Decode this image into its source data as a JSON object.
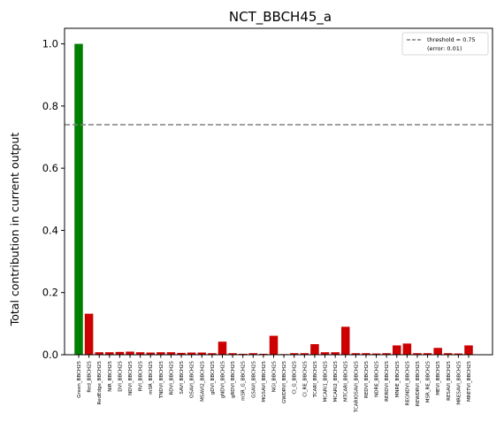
{
  "chart_data": {
    "type": "bar",
    "title": "NCT_BBCH45_a",
    "xlabel": "",
    "ylabel": "Total contribution in current output",
    "ylim": [
      0,
      1.05
    ],
    "yticks": [
      "0.0",
      "0.2",
      "0.4",
      "0.6",
      "0.8",
      "1.0"
    ],
    "ytick_values": [
      0,
      0.2,
      0.4,
      0.6,
      0.8,
      1.0
    ],
    "grid": false,
    "legend_position": "top-right",
    "threshold": {
      "value": 0.74,
      "label": "threshold = 0.75",
      "sublabel": "(error: 0.01)",
      "color": "#808080"
    },
    "colors": {
      "selected": "#008000",
      "other": "#cc0000"
    },
    "categories": [
      "Green_BBCH25",
      "Red_BBCH25",
      "RedEdge_BBCH25",
      "NIR_BBCH25",
      "DVI_BBCH25",
      "NDVI_BBCH25",
      "RVI_BBCH25",
      "mSR_BBCH25",
      "TNDVI_BBCH25",
      "RDVI_BBCH25",
      "SAVI_BBCH25",
      "OSAVI_BBCH25",
      "MSAVI2_BBCH25",
      "gDVI_BBCH25",
      "gNDVI_BBCH25",
      "gRDVI_BBCH25",
      "mSR_G_BBCH25",
      "GSAVI_BBCH25",
      "MGSAVI_BBCH25",
      "NGI_BBCH25",
      "GWDRVI_BBCH25",
      "CI_G_BBCH25",
      "CI_RE_BBCH25",
      "TCARI_BBCH25",
      "MCARI1_BBCH25",
      "MCARI2_BBCH25",
      "MTCARI_BBCH25",
      "TCARIOSAVI_BBCH25",
      "REDVI_BBCH25",
      "NDRE_BBCH25",
      "RERDVI_BBCH25",
      "MNRE_BBCH25",
      "REGNDVI_BBCH25",
      "REWDRVI_BBCH25",
      "MSR_RE_BBCH25",
      "MEVI_BBCH25",
      "RESAVI_BBCH25",
      "MRESAVI_BBCH25",
      "MRETVI_BBCH25"
    ],
    "values": [
      1.0,
      0.132,
      0.008,
      0.008,
      0.009,
      0.01,
      0.008,
      0.007,
      0.008,
      0.008,
      0.006,
      0.007,
      0.007,
      0.005,
      0.042,
      0.005,
      0.003,
      0.005,
      0.003,
      0.061,
      0.002,
      0.005,
      0.005,
      0.034,
      0.008,
      0.008,
      0.09,
      0.005,
      0.005,
      0.004,
      0.005,
      0.03,
      0.036,
      0.005,
      0.005,
      0.022,
      0.005,
      0.004,
      0.03
    ],
    "selected_index": 0
  }
}
